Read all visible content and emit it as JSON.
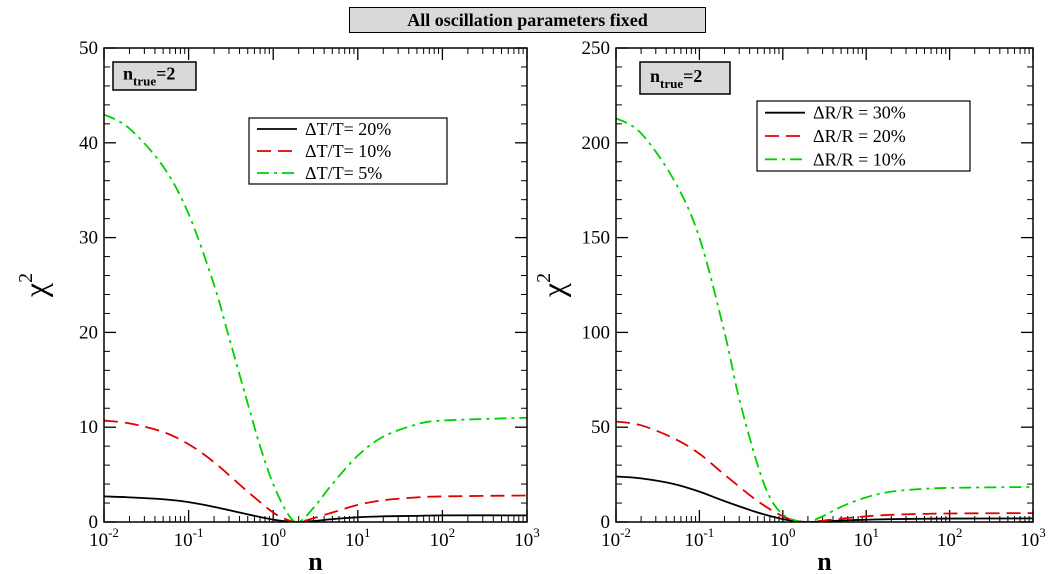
{
  "figure_title": "All oscillation parameters fixed",
  "chart_data": [
    {
      "type": "line",
      "xlabel": "n",
      "ylabel": "χ",
      "ylabel_sup": "2",
      "xscale": "log",
      "xlim": [
        0.01,
        1000
      ],
      "ylim": [
        0,
        50
      ],
      "yticks": [
        0,
        10,
        20,
        30,
        40,
        50
      ],
      "xtick_exponents": [
        "-2",
        "-1",
        "0",
        "1",
        "2",
        "3"
      ],
      "annotation": {
        "base": "n",
        "sub": "true",
        "rest": "=2"
      },
      "legend_position": "top-right",
      "series": [
        {
          "name": "ΔT/T= 20%",
          "color": "#000000",
          "dash": "solid",
          "x": [
            0.01,
            0.02,
            0.05,
            0.1,
            0.2,
            0.5,
            1,
            1.5,
            2,
            3,
            5,
            10,
            20,
            50,
            100,
            1000
          ],
          "y": [
            2.7,
            2.6,
            2.4,
            2.1,
            1.6,
            0.8,
            0.25,
            0.05,
            0,
            0.1,
            0.3,
            0.5,
            0.6,
            0.65,
            0.7,
            0.7
          ]
        },
        {
          "name": "ΔT/T= 10%",
          "color": "#e00000",
          "dash": "dashed",
          "x": [
            0.01,
            0.02,
            0.05,
            0.1,
            0.2,
            0.5,
            1,
            1.5,
            2,
            3,
            5,
            10,
            20,
            50,
            100,
            1000
          ],
          "y": [
            10.7,
            10.4,
            9.5,
            8.2,
            6.3,
            3.2,
            1.0,
            0.2,
            0,
            0.4,
            1.0,
            1.8,
            2.3,
            2.6,
            2.7,
            2.8
          ]
        },
        {
          "name": "ΔT/T= 5%",
          "color": "#00d000",
          "dash": "dashdot",
          "x": [
            0.01,
            0.02,
            0.05,
            0.1,
            0.2,
            0.3,
            0.5,
            0.7,
            1,
            1.5,
            2,
            3,
            5,
            10,
            20,
            50,
            100,
            1000
          ],
          "y": [
            43,
            41.5,
            37.5,
            32.5,
            25,
            19.5,
            12.5,
            8,
            4,
            0.8,
            0,
            1.5,
            4,
            7,
            9,
            10.3,
            10.7,
            11
          ]
        }
      ]
    },
    {
      "type": "line",
      "xlabel": "n",
      "ylabel": "χ",
      "ylabel_sup": "2",
      "xscale": "log",
      "xlim": [
        0.01,
        1000
      ],
      "ylim": [
        0,
        250
      ],
      "yticks": [
        0,
        50,
        100,
        150,
        200,
        250
      ],
      "xtick_exponents": [
        "-2",
        "-1",
        "0",
        "1",
        "2",
        "3"
      ],
      "annotation": {
        "base": "n",
        "sub": "true",
        "rest": "=2"
      },
      "legend_position": "top-right",
      "series": [
        {
          "name": "ΔR/R = 30%",
          "color": "#000000",
          "dash": "solid",
          "x": [
            0.01,
            0.02,
            0.05,
            0.1,
            0.2,
            0.5,
            1,
            1.5,
            2,
            3,
            5,
            10,
            20,
            50,
            100,
            1000
          ],
          "y": [
            24,
            23,
            20,
            16,
            11,
            5,
            1.5,
            0.3,
            0,
            0.3,
            0.8,
            1.2,
            1.5,
            1.7,
            1.8,
            1.9
          ]
        },
        {
          "name": "ΔR/R = 20%",
          "color": "#e00000",
          "dash": "dashed",
          "x": [
            0.01,
            0.02,
            0.05,
            0.1,
            0.2,
            0.5,
            1,
            1.5,
            2,
            3,
            5,
            10,
            20,
            50,
            100,
            1000
          ],
          "y": [
            53,
            51,
            44,
            36,
            25,
            11,
            3,
            0.5,
            0,
            0.7,
            1.8,
            3,
            3.8,
            4.3,
            4.5,
            4.7
          ]
        },
        {
          "name": "ΔR/R = 10%",
          "color": "#00d000",
          "dash": "dashdot",
          "x": [
            0.01,
            0.02,
            0.05,
            0.1,
            0.2,
            0.3,
            0.5,
            0.7,
            1,
            1.5,
            2,
            3,
            5,
            10,
            20,
            50,
            100,
            1000
          ],
          "y": [
            213,
            205,
            180,
            150,
            100,
            65,
            30,
            13,
            4,
            0.5,
            0,
            3,
            8,
            13,
            16,
            17.5,
            18,
            18.5
          ]
        }
      ]
    }
  ]
}
